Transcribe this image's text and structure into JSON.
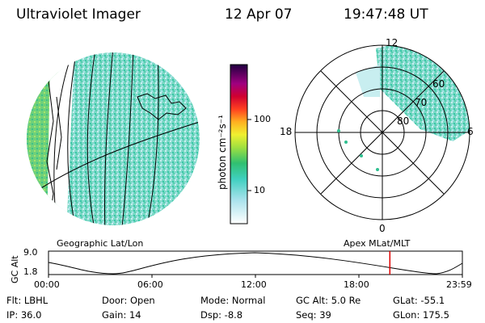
{
  "header": {
    "instrument": "Ultraviolet Imager",
    "date": "12 Apr 07",
    "time": "19:47:48 UT"
  },
  "colorbar": {
    "unit_label": "photon cm⁻²s⁻¹",
    "ticks": [
      "100",
      "10"
    ]
  },
  "polar_plot": {
    "mlt_labels": [
      "12",
      "18",
      "6",
      "0"
    ],
    "mlat_labels": [
      "60",
      "70",
      "80"
    ]
  },
  "map_labels": {
    "left": "Geographic Lat/Lon",
    "right": "Apex  MLat/MLT"
  },
  "altitude_panel": {
    "axis_label": "GC Alt",
    "ticks": [
      "9.0",
      "1.8"
    ],
    "time_ticks": [
      "00:00",
      "06:00",
      "12:00",
      "18:00",
      "23:59"
    ],
    "current_time_fraction": 0.8248
  },
  "status": {
    "flt": "Flt: LBHL",
    "door": "Door: Open",
    "mode": "Mode: Normal",
    "gc_alt": "GC Alt: 5.0 Re",
    "glat": "GLat: -55.1",
    "ip": "IP: 36.0",
    "gain": "Gain: 14",
    "dsp": "Dsp:    -8.8",
    "seq": "Seq: 39",
    "glon": "GLon: 175.5"
  },
  "colors": {
    "background": "#ffffff",
    "orbit_marker": "#e00000",
    "aurora_dominant": "#5fd0c0"
  }
}
